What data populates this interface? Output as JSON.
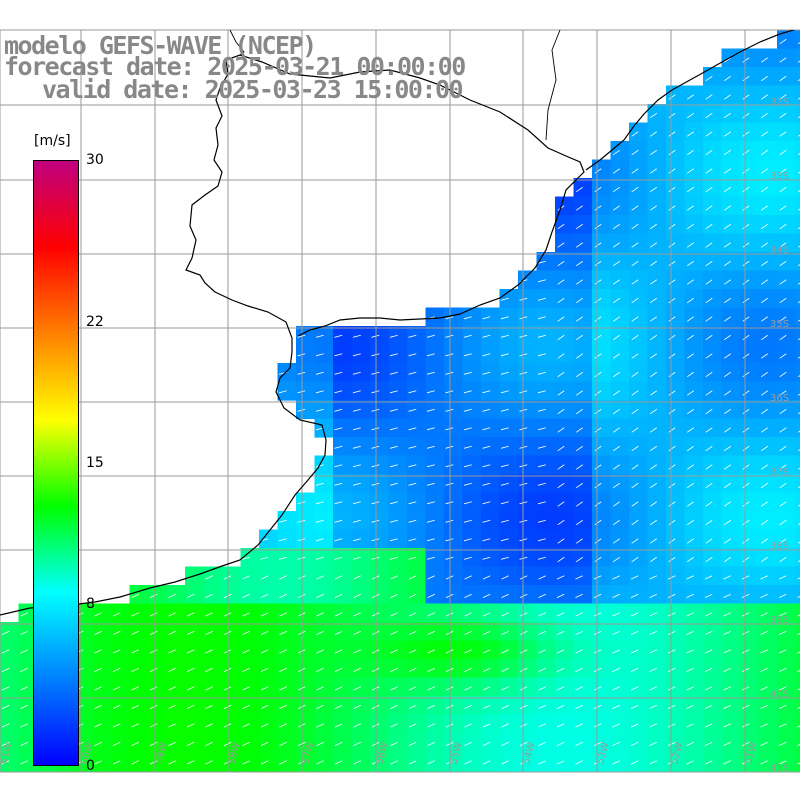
{
  "title": {
    "line1": "modelo GEFS-WAVE (NCEP)",
    "line2": "forecast date: 2025-03-21 00:00:00",
    "line3": "valid date: 2025-03-23 15:00:00"
  },
  "colorbar": {
    "unit": "[m/s]",
    "min": 0,
    "max": 30,
    "ticks": [
      {
        "value": 30,
        "label": "30"
      },
      {
        "value": 22,
        "label": "22"
      },
      {
        "value": 15,
        "label": "15"
      },
      {
        "value": 8,
        "label": "8"
      },
      {
        "value": 0,
        "label": "0"
      }
    ],
    "colors": [
      "#0000ff",
      "#0080ff",
      "#00ffff",
      "#00ff00",
      "#ffff00",
      "#ff8000",
      "#ff0000",
      "#c0007f"
    ]
  },
  "map": {
    "land_color": "#ffffff",
    "coast_color": "#000000",
    "grid_color": "#9a9a9a",
    "arrow_color": "#ffffff",
    "latitude_labels": [
      "32S",
      "33S",
      "34S",
      "35S",
      "36S",
      "37S",
      "38S",
      "39S",
      "40S",
      "41S"
    ],
    "longitude_labels": [
      "61W",
      "60W",
      "59W",
      "58W",
      "57W",
      "56W",
      "55W",
      "54W",
      "53W",
      "52W",
      "51W"
    ]
  }
}
